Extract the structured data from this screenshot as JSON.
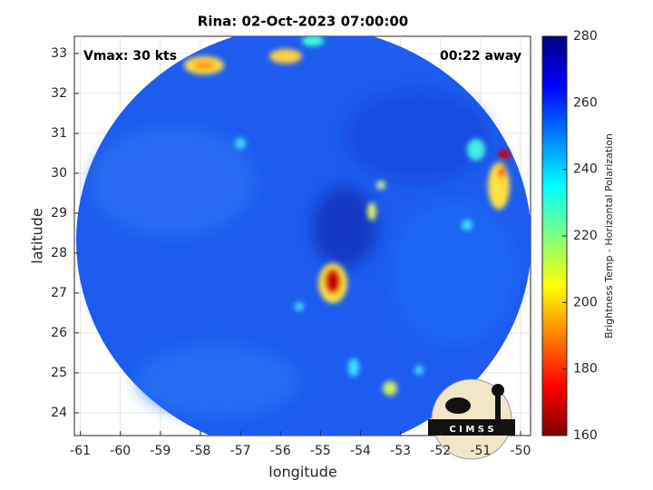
{
  "map": {
    "title": "Rina: 02-Oct-2023 07:00:00",
    "xlabel": "longitude",
    "ylabel": "latitude",
    "xlim": [
      -61.15,
      -49.75
    ],
    "ylim": [
      23.43,
      33.43
    ],
    "xticks": [
      -61,
      -60,
      -59,
      -58,
      -57,
      -56,
      -55,
      -54,
      -53,
      -52,
      -51,
      -50
    ],
    "yticks": [
      24,
      25,
      26,
      27,
      28,
      29,
      30,
      31,
      32,
      33
    ],
    "grid": true,
    "annotations": {
      "left": "Vmax: 30 kts",
      "right": "00:22 away"
    },
    "colorbar": {
      "label": "Brightness Temp - Horizontal Polarization",
      "lim": [
        160,
        280
      ],
      "ticks": [
        160,
        180,
        200,
        220,
        240,
        260,
        280
      ],
      "colormap": [
        "#800000",
        "#ff0000",
        "#ff8000",
        "#ffff00",
        "#80ff80",
        "#00ffff",
        "#0080ff",
        "#0000ff",
        "#000080"
      ]
    },
    "logo": "C I M S S"
  }
}
